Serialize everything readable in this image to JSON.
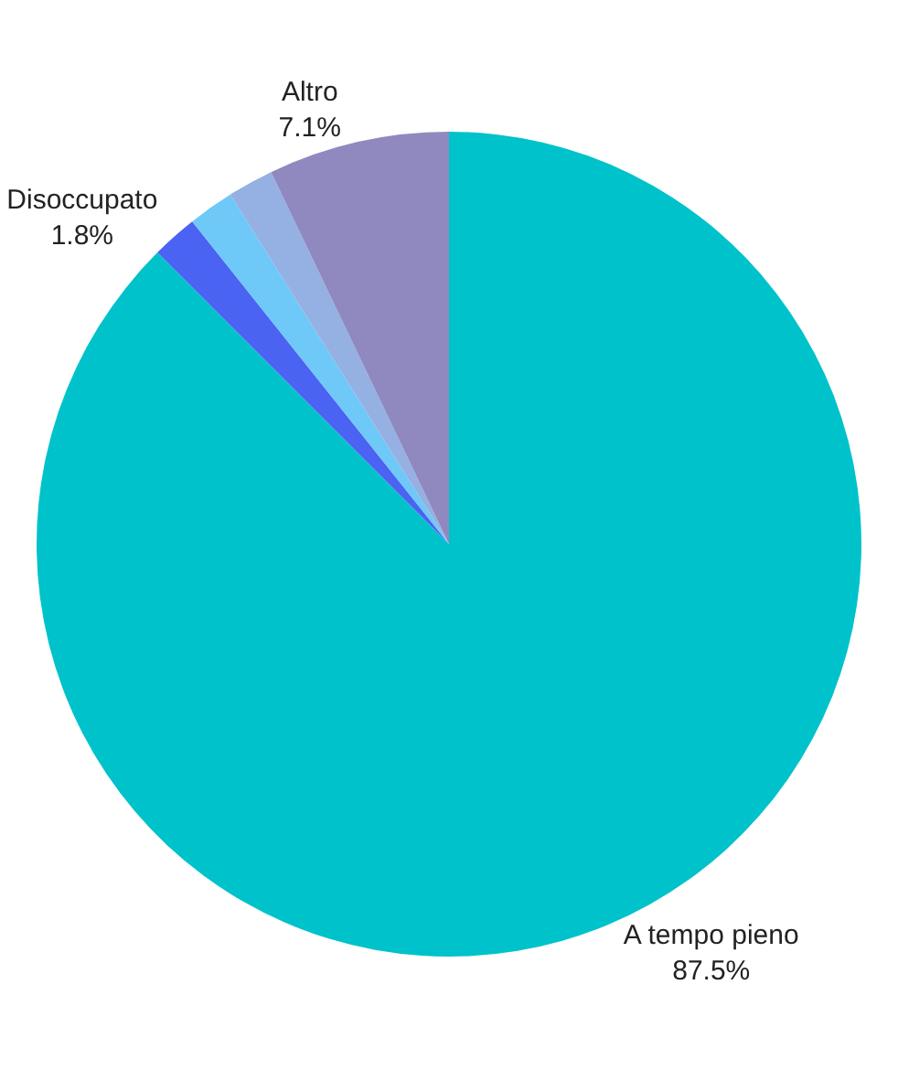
{
  "chart_data": {
    "type": "pie",
    "categories": [
      "A tempo pieno",
      "Disoccupato",
      null,
      null,
      "Altro"
    ],
    "values": [
      87.5,
      1.8,
      1.8,
      1.8,
      7.1
    ],
    "value_labels": [
      "87.5%",
      "1.8%",
      null,
      null,
      "7.1%"
    ],
    "colors": [
      "#00c2cb",
      "#4a63f2",
      "#6ec8f8",
      "#95b0e2",
      "#8f89bf"
    ],
    "legend": false
  }
}
